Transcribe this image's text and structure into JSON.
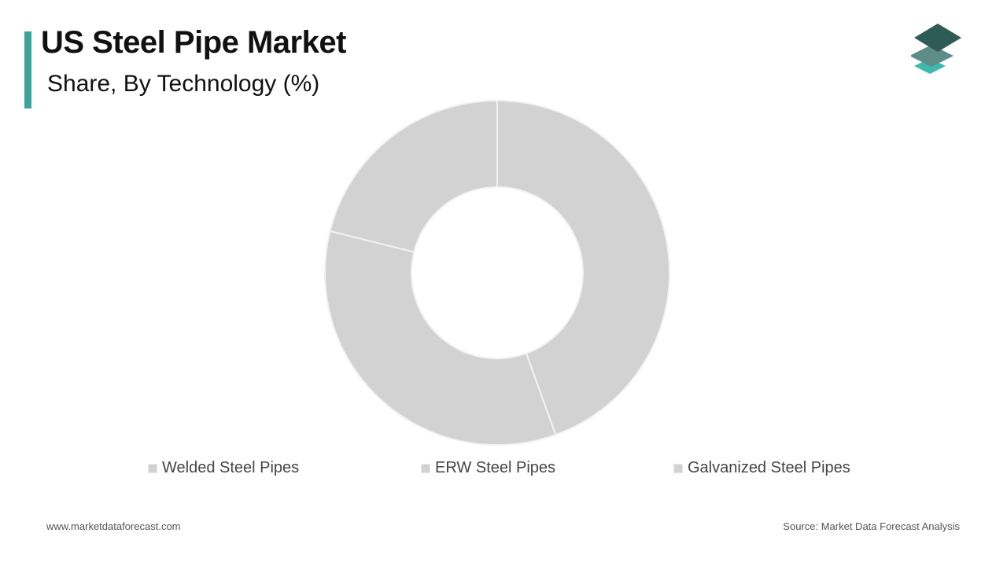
{
  "header": {
    "title": "US Steel Pipe Market",
    "subtitle": "Share, By Technology (%)"
  },
  "logo": {
    "icon": "stacked-layers-logo",
    "colors": [
      "#2e5b56",
      "#5e8c86",
      "#3fb8ae"
    ]
  },
  "chart_data": {
    "type": "pie",
    "variant": "donut",
    "title": "US Steel Pipe Market",
    "subtitle": "Share, By Technology (%)",
    "categories": [
      "Welded Steel Pipes",
      "ERW Steel Pipes",
      "Galvanized Steel Pipes"
    ],
    "values": [
      44.5,
      34.4,
      21.1
    ],
    "unit": "%",
    "slice_color": "#d3d2d3",
    "separator_color": "#f2f2f2",
    "legend_placement": "bottom"
  },
  "footer": {
    "website": "www.marketdataforecast.com",
    "source": "Source: Market Data Forecast Analysis"
  }
}
